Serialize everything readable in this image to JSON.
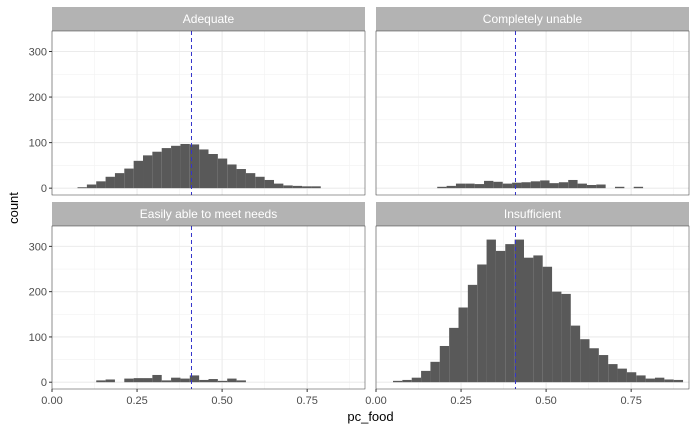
{
  "chart_data": {
    "type": "histogram",
    "xlabel": "pc_food",
    "ylabel": "count",
    "xlim": [
      0.0,
      0.92
    ],
    "ylim": [
      -15,
      345
    ],
    "x_ticks": [
      0.0,
      0.25,
      0.5,
      0.75
    ],
    "x_tick_labels": [
      "0.00",
      "0.25",
      "0.50",
      "0.75"
    ],
    "y_ticks": [
      0,
      100,
      200,
      300
    ],
    "y_tick_labels": [
      "0",
      "100",
      "200",
      "300"
    ],
    "bin_width": 0.0275,
    "reference_line_x": 0.41,
    "colors": {
      "bar": "#595959",
      "strip": "#b3b3b3",
      "reference_line": "#3333cc",
      "grid": "#ebebeb",
      "panel_border": "#333333"
    },
    "panels": [
      {
        "title": "Adequate",
        "bin_starts": [
          0.075,
          0.1025,
          0.13,
          0.1575,
          0.185,
          0.2125,
          0.24,
          0.2675,
          0.295,
          0.3225,
          0.35,
          0.3775,
          0.405,
          0.4325,
          0.46,
          0.4875,
          0.515,
          0.5425,
          0.57,
          0.5975,
          0.625,
          0.6525,
          0.68,
          0.7075,
          0.735,
          0.7625,
          0.79
        ],
        "counts": [
          2,
          8,
          15,
          25,
          33,
          43,
          60,
          72,
          80,
          88,
          93,
          97,
          96,
          85,
          75,
          65,
          52,
          42,
          33,
          25,
          18,
          10,
          6,
          5,
          4,
          4,
          0
        ]
      },
      {
        "title": "Completely unable",
        "bin_starts": [
          0.18,
          0.2075,
          0.235,
          0.2625,
          0.29,
          0.3175,
          0.345,
          0.3725,
          0.4,
          0.4275,
          0.455,
          0.4825,
          0.51,
          0.5375,
          0.565,
          0.5925,
          0.62,
          0.6475,
          0.675,
          0.7025,
          0.73,
          0.7575,
          0.785
        ],
        "counts": [
          3,
          5,
          10,
          10,
          9,
          16,
          14,
          10,
          12,
          13,
          15,
          17,
          11,
          13,
          18,
          10,
          7,
          8,
          0,
          3,
          0,
          3,
          0
        ]
      },
      {
        "title": "Easily able to meet needs",
        "bin_starts": [
          0.13,
          0.1575,
          0.185,
          0.2125,
          0.24,
          0.2675,
          0.295,
          0.3225,
          0.35,
          0.3775,
          0.405,
          0.4325,
          0.46,
          0.4875,
          0.515,
          0.5425
        ],
        "counts": [
          4,
          6,
          0,
          8,
          9,
          9,
          16,
          4,
          10,
          8,
          15,
          5,
          7,
          3,
          8,
          4
        ]
      },
      {
        "title": "Insufficient",
        "bin_starts": [
          0.05,
          0.0775,
          0.105,
          0.1325,
          0.16,
          0.1875,
          0.215,
          0.2425,
          0.27,
          0.2975,
          0.325,
          0.3525,
          0.38,
          0.4075,
          0.435,
          0.4625,
          0.49,
          0.5175,
          0.545,
          0.5725,
          0.6,
          0.6275,
          0.655,
          0.6825,
          0.71,
          0.7375,
          0.765,
          0.7925,
          0.82,
          0.8475,
          0.875
        ],
        "counts": [
          3,
          5,
          10,
          25,
          45,
          80,
          120,
          165,
          215,
          260,
          315,
          290,
          305,
          315,
          275,
          280,
          255,
          200,
          195,
          125,
          95,
          75,
          60,
          40,
          30,
          22,
          15,
          8,
          10,
          6,
          5
        ]
      }
    ]
  }
}
